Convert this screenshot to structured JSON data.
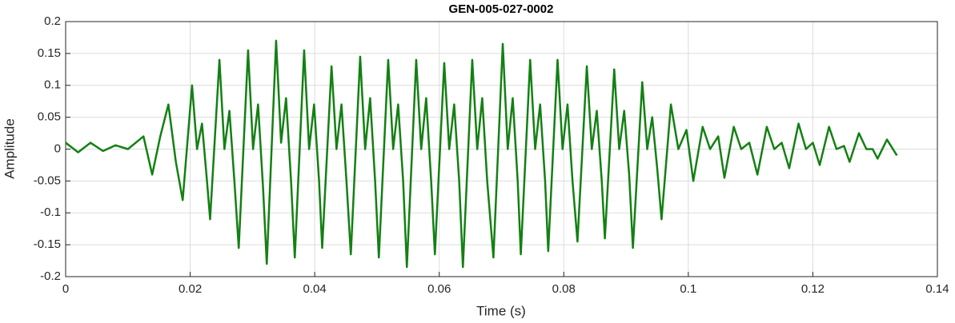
{
  "chart_data": {
    "type": "line",
    "title": "GEN-005-027-0002",
    "x_label": "Time (s)",
    "y_label": "Amplitude",
    "color": "#138013",
    "grid": true,
    "xlim": [
      0,
      0.14
    ],
    "xticks": [
      0,
      0.02,
      0.04,
      0.06,
      0.08,
      0.1,
      0.12,
      0.14
    ],
    "ylim": [
      -0.2,
      0.2
    ],
    "yticks": [
      -0.2,
      -0.15,
      -0.1,
      -0.05,
      0,
      0.05,
      0.1,
      0.15,
      0.2
    ],
    "x": [
      0,
      0.002,
      0.004,
      0.006,
      0.008,
      0.01,
      0.0125,
      0.0139,
      0.0152,
      0.0165,
      0.0177,
      0.0188,
      0.0203,
      0.0211,
      0.0219,
      0.0227,
      0.0232,
      0.0247,
      0.0255,
      0.0263,
      0.0271,
      0.0278,
      0.0293,
      0.0301,
      0.0309,
      0.0317,
      0.0323,
      0.0338,
      0.0346,
      0.0354,
      0.0362,
      0.0368,
      0.0383,
      0.0391,
      0.0399,
      0.0407,
      0.0412,
      0.0427,
      0.0435,
      0.0443,
      0.0451,
      0.0458,
      0.0473,
      0.0481,
      0.0489,
      0.0497,
      0.0503,
      0.0518,
      0.0526,
      0.0534,
      0.0542,
      0.0548,
      0.0563,
      0.0571,
      0.0579,
      0.0587,
      0.0593,
      0.0608,
      0.0616,
      0.0624,
      0.0632,
      0.0638,
      0.0653,
      0.0661,
      0.0669,
      0.0677,
      0.0687,
      0.0702,
      0.071,
      0.0718,
      0.0726,
      0.0731,
      0.0746,
      0.0754,
      0.0762,
      0.077,
      0.0775,
      0.079,
      0.0798,
      0.0806,
      0.0814,
      0.0822,
      0.0837,
      0.0845,
      0.0853,
      0.0861,
      0.0866,
      0.0881,
      0.0889,
      0.0897,
      0.0905,
      0.0911,
      0.0926,
      0.0934,
      0.0942,
      0.095,
      0.0957,
      0.0972,
      0.0984,
      0.0997,
      0.1008,
      0.1023,
      0.1035,
      0.1048,
      0.1058,
      0.1073,
      0.1085,
      0.1098,
      0.1111,
      0.1126,
      0.1138,
      0.115,
      0.1162,
      0.1177,
      0.1189,
      0.12,
      0.1211,
      0.1226,
      0.1238,
      0.125,
      0.1259,
      0.1274,
      0.1286,
      0.1296,
      0.1304,
      0.1319,
      0.1335
    ],
    "values": [
      0.01,
      -0.005,
      0.01,
      -0.003,
      0.006,
      0,
      0.02,
      -0.04,
      0.02,
      0.07,
      -0.02,
      -0.08,
      0.1,
      0,
      0.04,
      -0.05,
      -0.11,
      0.14,
      0,
      0.06,
      -0.05,
      -0.155,
      0.155,
      0,
      0.07,
      -0.06,
      -0.18,
      0.17,
      0.01,
      0.08,
      -0.05,
      -0.17,
      0.155,
      0,
      0.07,
      -0.05,
      -0.155,
      0.13,
      0,
      0.07,
      -0.05,
      -0.165,
      0.145,
      0,
      0.08,
      -0.05,
      -0.17,
      0.14,
      0,
      0.07,
      -0.05,
      -0.185,
      0.14,
      0,
      0.08,
      -0.05,
      -0.165,
      0.135,
      0,
      0.07,
      -0.05,
      -0.185,
      0.14,
      0,
      0.08,
      -0.05,
      -0.17,
      0.165,
      0,
      0.08,
      -0.05,
      -0.165,
      0.14,
      0,
      0.07,
      -0.05,
      -0.16,
      0.14,
      0,
      0.07,
      -0.05,
      -0.145,
      0.13,
      0,
      0.06,
      -0.05,
      -0.14,
      0.125,
      0,
      0.06,
      -0.04,
      -0.155,
      0.105,
      0,
      0.05,
      -0.03,
      -0.11,
      0.07,
      0,
      0.03,
      -0.05,
      0.035,
      0,
      0.02,
      -0.045,
      0.035,
      0,
      0.01,
      -0.04,
      0.035,
      0,
      0.01,
      -0.03,
      0.04,
      0,
      0.01,
      -0.025,
      0.035,
      0,
      0.005,
      -0.02,
      0.025,
      0,
      0,
      -0.015,
      0.015,
      -0.01
    ]
  }
}
